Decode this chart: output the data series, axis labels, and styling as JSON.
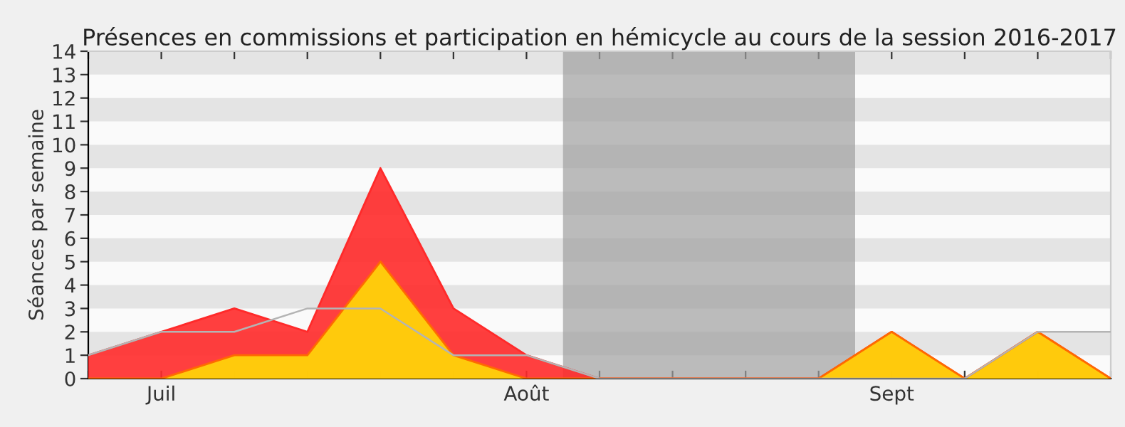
{
  "chart_data": {
    "type": "area",
    "title": "Présences en commissions et participation en hémicycle au cours de la session 2016-2017",
    "ylabel": "Séances par semaine",
    "categories": [
      null,
      "Juil",
      null,
      null,
      null,
      null,
      "Août",
      null,
      null,
      null,
      null,
      "Sept",
      null,
      null,
      null
    ],
    "series": [
      {
        "color": "#ff2a2a",
        "values": [
          1,
          2,
          3,
          2,
          9,
          3,
          1,
          0,
          0,
          0,
          0,
          2,
          0,
          2,
          0
        ]
      },
      {
        "color": "#ffd20a",
        "values": [
          0,
          0,
          1,
          1,
          5,
          1,
          0,
          0,
          0,
          0,
          0,
          2,
          0,
          2,
          0
        ]
      },
      {
        "type": "line",
        "color": "#b4b4b4",
        "values": [
          1,
          2,
          2,
          3,
          3,
          1,
          1,
          0,
          0,
          0,
          0,
          0,
          0,
          2,
          2
        ]
      }
    ],
    "ylim": [
      0,
      14
    ],
    "yticks": [
      0,
      1,
      2,
      3,
      4,
      5,
      6,
      7,
      8,
      9,
      10,
      11,
      12,
      13,
      14
    ],
    "legend": false
  }
}
